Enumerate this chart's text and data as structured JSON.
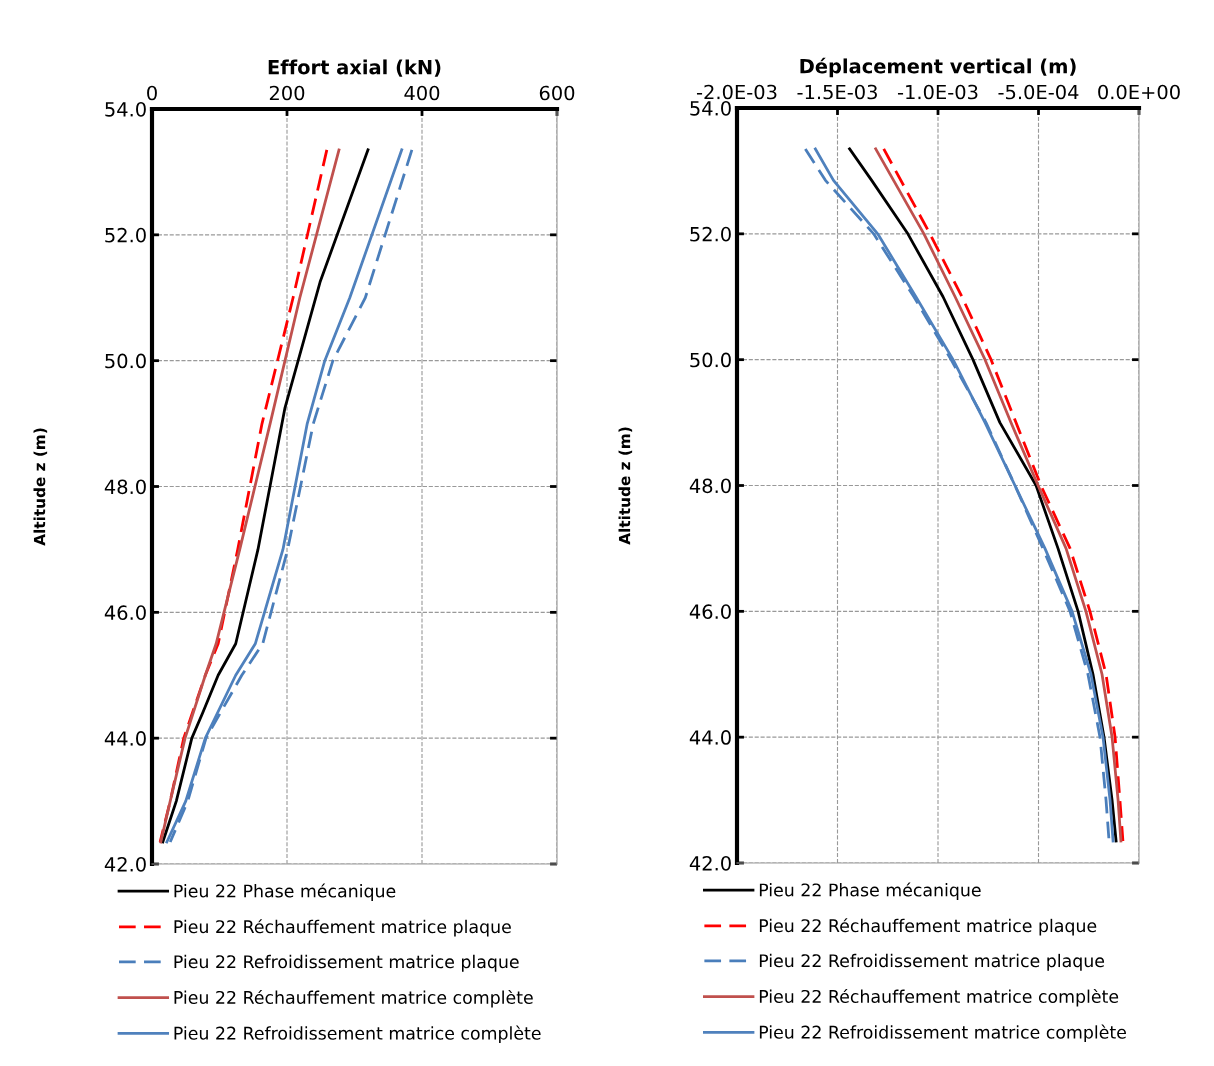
{
  "chart_data": [
    {
      "type": "line",
      "xlabel": "Effort axial (kN)",
      "ylabel": "Altitude z (m)",
      "xlim": [
        0,
        600
      ],
      "xticks": [
        0,
        200,
        400,
        600
      ],
      "ylim": [
        42,
        54
      ],
      "yticks": [
        {
          "value": 42,
          "label": "42.0"
        },
        {
          "value": 44,
          "label": "44.0"
        },
        {
          "value": 46,
          "label": "46.0"
        },
        {
          "value": 48,
          "label": "48.0"
        },
        {
          "value": 50,
          "label": "50.0"
        },
        {
          "value": 52,
          "label": "52.0"
        },
        {
          "value": 54,
          "label": "54.0"
        }
      ],
      "grid": true,
      "legend": "bottom",
      "series": [
        {
          "name": "Pieu 22 Phase mécanique",
          "color": "#000000",
          "line_style": "solid",
          "x": [
            320,
            249,
            197,
            157,
            124,
            98,
            75,
            59,
            36,
            16
          ],
          "values": [
            53.35,
            51.25,
            49.25,
            47,
            45.5,
            45,
            44.4,
            44,
            43,
            42.35
          ]
        },
        {
          "name": "Pieu 22 Réchauffement matrice plaque",
          "color": "#ff0000",
          "line_style": "dashed",
          "x": [
            259,
            209,
            163,
            127,
            98,
            79,
            47,
            27,
            12
          ],
          "values": [
            53.35,
            51,
            49,
            47,
            45.5,
            45,
            44,
            43,
            42.35
          ]
        },
        {
          "name": "Pieu 22 Refroidissement matrice plaque",
          "color": "#4a7ebb",
          "line_style": "dashed",
          "x": [
            385,
            316,
            268,
            239,
            201,
            164,
            133,
            80,
            53,
            27
          ],
          "values": [
            53.35,
            51,
            50,
            49,
            47,
            45.5,
            45,
            44,
            43,
            42.35
          ]
        },
        {
          "name": "Pieu 22 Réchauffement matrice complète",
          "color": "#c0504d",
          "line_style": "solid",
          "x": [
            277,
            219,
            175,
            130,
            95,
            79,
            49,
            27,
            13
          ],
          "values": [
            53.35,
            51,
            49,
            47,
            45.5,
            45,
            44,
            43,
            42.35
          ]
        },
        {
          "name": "Pieu 22 Refroidissement matrice complète",
          "color": "#4f81bd",
          "line_style": "solid",
          "x": [
            370,
            293,
            256,
            230,
            194,
            153,
            124,
            79,
            50,
            22
          ],
          "values": [
            53.35,
            51,
            50,
            49,
            47,
            45.5,
            45,
            44,
            43,
            42.35
          ]
        }
      ]
    },
    {
      "type": "line",
      "xlabel": "Déplacement vertical (m)",
      "ylabel": "Altitude z (m)",
      "xlim": [
        -0.002,
        0.0
      ],
      "xticks": [
        {
          "value": -0.002,
          "label": "-2.0E-03"
        },
        {
          "value": -0.0015,
          "label": "-1.5E-03"
        },
        {
          "value": -0.001,
          "label": "-1.0E-03"
        },
        {
          "value": -0.0005,
          "label": "-5.0E-04"
        },
        {
          "value": 0.0,
          "label": "0.0E+00"
        }
      ],
      "ylim": [
        42,
        54
      ],
      "yticks": [
        {
          "value": 42,
          "label": "42.0"
        },
        {
          "value": 44,
          "label": "44.0"
        },
        {
          "value": 46,
          "label": "46.0"
        },
        {
          "value": 48,
          "label": "48.0"
        },
        {
          "value": 50,
          "label": "50.0"
        },
        {
          "value": 52,
          "label": "52.0"
        },
        {
          "value": 54,
          "label": "54.0"
        }
      ],
      "grid": true,
      "legend": "bottom",
      "series": [
        {
          "name": "Pieu 22 Phase mécanique",
          "color": "#000000",
          "line_style": "solid",
          "x": [
            -0.00144,
            -0.00133,
            -0.00115,
            -0.000975,
            -0.000826,
            -0.000692,
            -0.000512,
            -0.000403,
            -0.000303,
            -0.000229,
            -0.000174,
            -0.000134,
            -0.000114
          ],
          "values": [
            53.35,
            52.85,
            52,
            51,
            50,
            49,
            48,
            47,
            46,
            45,
            44,
            43,
            42.35
          ]
        },
        {
          "name": "Pieu 22 Réchauffement matrice plaque",
          "color": "#ff0000",
          "line_style": "dashed",
          "x": [
            -0.00127,
            -0.00104,
            -0.000881,
            -0.000736,
            -0.000612,
            -0.000488,
            -0.000343,
            -0.000244,
            -0.000164,
            -0.000119,
            -9.5e-05,
            -8e-05
          ],
          "values": [
            53.35,
            52,
            51,
            50,
            49,
            48,
            47,
            46,
            45,
            44,
            43,
            42.35
          ]
        },
        {
          "name": "Pieu 22 Refroidissement matrice plaque",
          "color": "#4a7ebb",
          "line_style": "dashed",
          "x": [
            -0.00166,
            -0.00156,
            -0.00132,
            -0.00112,
            -0.000935,
            -0.000761,
            -0.000617,
            -0.000478,
            -0.000343,
            -0.000254,
            -0.000194,
            -0.000164,
            -0.000149
          ],
          "values": [
            53.35,
            52.85,
            52,
            51,
            50,
            49,
            48,
            47,
            46,
            45,
            44,
            43,
            42.35
          ]
        },
        {
          "name": "Pieu 22 Réchauffement matrice complète",
          "color": "#c0504d",
          "line_style": "solid",
          "x": [
            -0.00131,
            -0.00107,
            -0.000915,
            -0.000766,
            -0.000637,
            -0.000502,
            -0.000363,
            -0.000264,
            -0.000184,
            -0.000134,
            -0.000104,
            -9e-05
          ],
          "values": [
            53.35,
            52,
            51,
            50,
            49,
            48,
            47,
            46,
            45,
            44,
            43,
            42.35
          ]
        },
        {
          "name": "Pieu 22 Refroidissement matrice complète",
          "color": "#4f81bd",
          "line_style": "solid",
          "x": [
            -0.00161,
            -0.00152,
            -0.0013,
            -0.00111,
            -0.000925,
            -0.000766,
            -0.000617,
            -0.000468,
            -0.000333,
            -0.000239,
            -0.000179,
            -0.000144,
            -0.000129
          ],
          "values": [
            53.35,
            52.85,
            52,
            51,
            50,
            49,
            48,
            47,
            46,
            45,
            44,
            43,
            42.35
          ]
        }
      ]
    }
  ]
}
